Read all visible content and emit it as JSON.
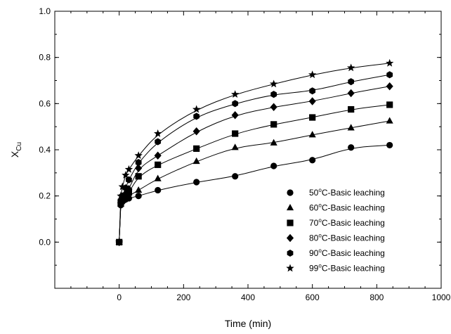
{
  "chart_data": {
    "type": "scatter",
    "title": "",
    "xlabel": "Time (min)",
    "ylabel_main": "X",
    "ylabel_sub": "Cu",
    "xlim": [
      -200,
      1000
    ],
    "ylim": [
      -0.2,
      1.0
    ],
    "x_ticks": [
      0,
      200,
      400,
      600,
      800,
      1000
    ],
    "y_ticks": [
      0.0,
      0.2,
      0.4,
      0.6,
      0.8,
      1.0
    ],
    "x_tick_labels": [
      "0",
      "200",
      "400",
      "600",
      "800",
      "1000"
    ],
    "y_tick_labels": [
      "0.0",
      "0.2",
      "0.4",
      "0.6",
      "0.8",
      "1.0"
    ],
    "grid": false,
    "legend_position": "bottom-right",
    "fit_lines": true,
    "series": [
      {
        "temp": "50",
        "suffix": "C-Basic leaching",
        "marker": "circle",
        "points": [
          [
            0,
            0.0
          ],
          [
            5,
            0.16
          ],
          [
            10,
            0.175
          ],
          [
            20,
            0.185
          ],
          [
            30,
            0.19
          ],
          [
            60,
            0.2
          ],
          [
            120,
            0.225
          ],
          [
            240,
            0.26
          ],
          [
            360,
            0.285
          ],
          [
            480,
            0.33
          ],
          [
            600,
            0.355
          ],
          [
            720,
            0.41
          ],
          [
            840,
            0.42
          ]
        ]
      },
      {
        "temp": "60",
        "suffix": "C-Basic leaching",
        "marker": "triangle",
        "points": [
          [
            0,
            0.0
          ],
          [
            5,
            0.165
          ],
          [
            10,
            0.18
          ],
          [
            20,
            0.19
          ],
          [
            30,
            0.2
          ],
          [
            60,
            0.225
          ],
          [
            120,
            0.275
          ],
          [
            240,
            0.35
          ],
          [
            360,
            0.41
          ],
          [
            480,
            0.43
          ],
          [
            600,
            0.465
          ],
          [
            720,
            0.495
          ],
          [
            840,
            0.525
          ]
        ]
      },
      {
        "temp": "70",
        "suffix": "C-Basic leaching",
        "marker": "square",
        "points": [
          [
            0,
            0.0
          ],
          [
            5,
            0.17
          ],
          [
            10,
            0.185
          ],
          [
            20,
            0.2
          ],
          [
            30,
            0.215
          ],
          [
            60,
            0.285
          ],
          [
            120,
            0.335
          ],
          [
            240,
            0.405
          ],
          [
            360,
            0.47
          ],
          [
            480,
            0.51
          ],
          [
            600,
            0.54
          ],
          [
            720,
            0.575
          ],
          [
            840,
            0.595
          ]
        ]
      },
      {
        "temp": "80",
        "suffix": "C-Basic leaching",
        "marker": "diamond",
        "points": [
          [
            0,
            0.0
          ],
          [
            5,
            0.17
          ],
          [
            10,
            0.19
          ],
          [
            20,
            0.21
          ],
          [
            30,
            0.23
          ],
          [
            60,
            0.32
          ],
          [
            120,
            0.375
          ],
          [
            240,
            0.48
          ],
          [
            360,
            0.55
          ],
          [
            480,
            0.585
          ],
          [
            600,
            0.61
          ],
          [
            720,
            0.645
          ],
          [
            840,
            0.675
          ]
        ]
      },
      {
        "temp": "90",
        "suffix": "C-Basic leaching",
        "marker": "hexagon",
        "points": [
          [
            0,
            0.0
          ],
          [
            5,
            0.18
          ],
          [
            10,
            0.2
          ],
          [
            20,
            0.235
          ],
          [
            30,
            0.27
          ],
          [
            60,
            0.345
          ],
          [
            120,
            0.435
          ],
          [
            240,
            0.545
          ],
          [
            360,
            0.6
          ],
          [
            480,
            0.64
          ],
          [
            600,
            0.655
          ],
          [
            720,
            0.695
          ],
          [
            840,
            0.725
          ]
        ]
      },
      {
        "temp": "99",
        "suffix": "C-Basic leaching",
        "marker": "star",
        "points": [
          [
            0,
            0.0
          ],
          [
            5,
            0.2
          ],
          [
            10,
            0.24
          ],
          [
            20,
            0.29
          ],
          [
            30,
            0.315
          ],
          [
            60,
            0.375
          ],
          [
            120,
            0.47
          ],
          [
            240,
            0.575
          ],
          [
            360,
            0.64
          ],
          [
            480,
            0.685
          ],
          [
            600,
            0.725
          ],
          [
            720,
            0.755
          ],
          [
            840,
            0.775
          ]
        ]
      }
    ]
  }
}
